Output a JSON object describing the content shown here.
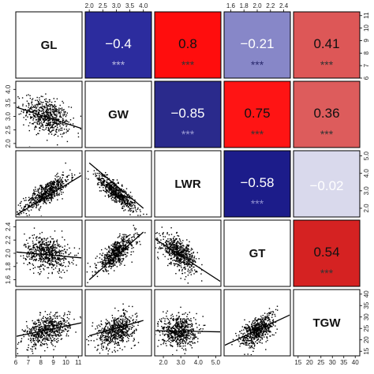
{
  "chart_data": {
    "type": "scatter",
    "title": "",
    "variables": [
      "GL",
      "GW",
      "LWR",
      "GT",
      "TGW"
    ],
    "ranges": {
      "GL": [
        6,
        11.3
      ],
      "GW": [
        1.85,
        4.3
      ],
      "LWR": [
        1.5,
        5.3
      ],
      "GT": [
        1.5,
        2.5
      ],
      "TGW": [
        13,
        42
      ]
    },
    "ticks": {
      "GL": [
        6,
        7,
        8,
        9,
        10,
        11
      ],
      "GW": [
        2.0,
        2.5,
        3.0,
        3.5,
        4.0
      ],
      "LWR": [
        2.0,
        3.0,
        4.0,
        5.0
      ],
      "GT": [
        1.6,
        1.8,
        2.0,
        2.2,
        2.4
      ],
      "TGW": [
        15,
        20,
        25,
        30,
        35,
        40
      ]
    },
    "tick_labels": {
      "GL": [
        "6",
        "7",
        "8",
        "9",
        "10",
        "11"
      ],
      "GW": [
        "2.0",
        "2.5",
        "3.0",
        "3.5",
        "4.0"
      ],
      "LWR": [
        "2.0",
        "3.0",
        "4.0",
        "5.0"
      ],
      "GT": [
        "1.6",
        "1.8",
        "2.0",
        "2.2",
        "2.4"
      ],
      "TGW": [
        "15",
        "20",
        "25",
        "30",
        "35",
        "40"
      ]
    },
    "means": {
      "GL": 8.5,
      "GW": 3.0,
      "LWR": 2.9,
      "GT": 2.0,
      "TGW": 24
    },
    "sds": {
      "GL": 0.9,
      "GW": 0.35,
      "LWR": 0.5,
      "GT": 0.13,
      "TGW": 3.5
    },
    "points_per_panel": 600,
    "correlations": [
      {
        "row": 0,
        "col": 1,
        "vars": [
          "GL",
          "GW"
        ],
        "r": -0.4,
        "label": "−0.4",
        "signif": "***",
        "fill": "#2c2c9e",
        "text_color": "#ffffff",
        "star_color": "#b9b9e0"
      },
      {
        "row": 0,
        "col": 2,
        "vars": [
          "GL",
          "LWR"
        ],
        "r": 0.8,
        "label": "0.8",
        "signif": "***",
        "fill": "#ff0d0d",
        "text_color": "#111111",
        "star_color": "#333333"
      },
      {
        "row": 0,
        "col": 3,
        "vars": [
          "GL",
          "GT"
        ],
        "r": -0.21,
        "label": "−0.21",
        "signif": "***",
        "fill": "#8787c8",
        "text_color": "#ffffff",
        "star_color": "#2a2a6e"
      },
      {
        "row": 0,
        "col": 4,
        "vars": [
          "GL",
          "TGW"
        ],
        "r": 0.41,
        "label": "0.41",
        "signif": "***",
        "fill": "#dd5757",
        "text_color": "#111111",
        "star_color": "#333333"
      },
      {
        "row": 1,
        "col": 2,
        "vars": [
          "GW",
          "LWR"
        ],
        "r": -0.85,
        "label": "−0.85",
        "signif": "***",
        "fill": "#2a2a8c",
        "text_color": "#ffffff",
        "star_color": "#9c9cd4"
      },
      {
        "row": 1,
        "col": 3,
        "vars": [
          "GW",
          "GT"
        ],
        "r": 0.75,
        "label": "0.75",
        "signif": "***",
        "fill": "#ff1414",
        "text_color": "#111111",
        "star_color": "#333333"
      },
      {
        "row": 1,
        "col": 4,
        "vars": [
          "GW",
          "TGW"
        ],
        "r": 0.36,
        "label": "0.36",
        "signif": "***",
        "fill": "#dd5c5c",
        "text_color": "#111111",
        "star_color": "#333333"
      },
      {
        "row": 2,
        "col": 3,
        "vars": [
          "LWR",
          "GT"
        ],
        "r": -0.58,
        "label": "−0.58",
        "signif": "***",
        "fill": "#1c1c8a",
        "text_color": "#ffffff",
        "star_color": "#8f8fd0"
      },
      {
        "row": 2,
        "col": 4,
        "vars": [
          "LWR",
          "TGW"
        ],
        "r": -0.02,
        "label": "−0.02",
        "signif": "",
        "fill": "#d9d9ec",
        "text_color": "#ffffff",
        "star_color": "#ffffff"
      },
      {
        "row": 3,
        "col": 4,
        "vars": [
          "GT",
          "TGW"
        ],
        "r": 0.54,
        "label": "0.54",
        "signif": "***",
        "fill": "#d52222",
        "text_color": "#111111",
        "star_color": "#333333"
      }
    ],
    "fit_lines": [
      {
        "row": 1,
        "col": 0,
        "x": [
          6,
          11.3
        ],
        "y": [
          3.35,
          2.55
        ]
      },
      {
        "row": 2,
        "col": 0,
        "x": [
          6,
          11.3
        ],
        "y": [
          1.6,
          3.9
        ]
      },
      {
        "row": 2,
        "col": 1,
        "x": [
          2.0,
          4.0
        ],
        "y": [
          4.6,
          2.0
        ]
      },
      {
        "row": 3,
        "col": 0,
        "x": [
          6,
          11.3
        ],
        "y": [
          2.02,
          1.93
        ]
      },
      {
        "row": 3,
        "col": 1,
        "x": [
          2.0,
          4.0
        ],
        "y": [
          1.6,
          2.32
        ]
      },
      {
        "row": 3,
        "col": 2,
        "x": [
          1.5,
          5.3
        ],
        "y": [
          2.22,
          1.57
        ]
      },
      {
        "row": 4,
        "col": 0,
        "x": [
          6,
          11.3
        ],
        "y": [
          21.5,
          27.5
        ]
      },
      {
        "row": 4,
        "col": 1,
        "x": [
          2.0,
          4.0
        ],
        "y": [
          21.8,
          28.5
        ]
      },
      {
        "row": 4,
        "col": 2,
        "x": [
          1.5,
          5.3
        ],
        "y": [
          24.0,
          23.5
        ]
      },
      {
        "row": 4,
        "col": 3,
        "x": [
          1.5,
          2.5
        ],
        "y": [
          17.5,
          31.0
        ]
      }
    ]
  }
}
